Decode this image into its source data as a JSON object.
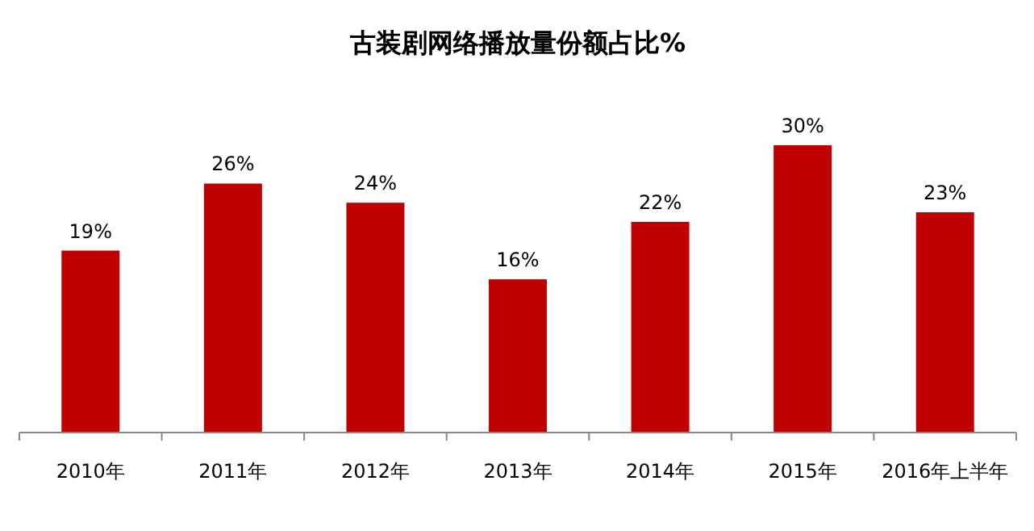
{
  "chart_data": {
    "type": "bar",
    "title": "古装剧网络播放量份额占比%",
    "categories": [
      "2010年",
      "2011年",
      "2012年",
      "2013年",
      "2014年",
      "2015年",
      "2016年上半年"
    ],
    "values": [
      19,
      26,
      24,
      16,
      22,
      30,
      23
    ],
    "value_labels": [
      "19%",
      "26%",
      "24%",
      "16%",
      "22%",
      "30%",
      "23%"
    ],
    "color": "#c00000",
    "grid": false,
    "legend": false
  }
}
